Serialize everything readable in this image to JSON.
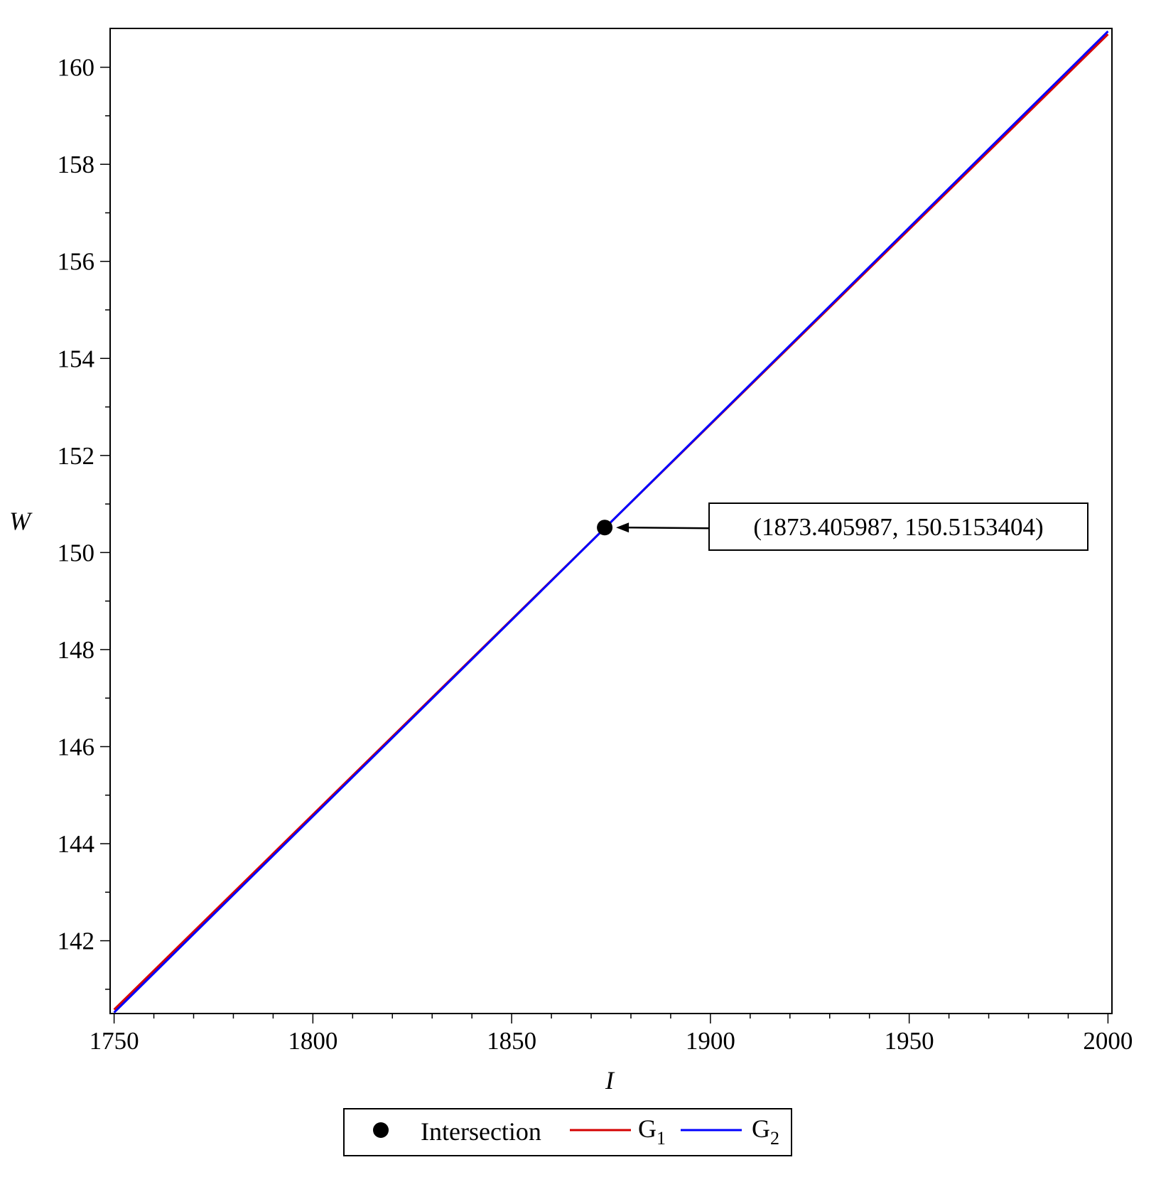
{
  "chart_data": {
    "type": "line",
    "xlabel": "I",
    "ylabel": "W",
    "xlim": [
      1749,
      2001
    ],
    "ylim": [
      140.5,
      160.8
    ],
    "x_ticks": [
      1750,
      1800,
      1850,
      1900,
      1950,
      2000
    ],
    "x_tick_labels": [
      "1750",
      "1800",
      "1850",
      "1900",
      "1950",
      "2000"
    ],
    "x_minor_step": 10,
    "y_ticks": [
      142,
      144,
      146,
      148,
      150,
      152,
      154,
      156,
      158,
      160
    ],
    "y_tick_labels": [
      "142",
      "144",
      "146",
      "148",
      "150",
      "152",
      "154",
      "156",
      "158",
      "160"
    ],
    "y_minor_step": 1,
    "grid": false,
    "legend_position": "bottom-center",
    "series": [
      {
        "name": "G",
        "sub": "1",
        "color": "#d40000",
        "x": [
          1750,
          2000
        ],
        "y": [
          140.58,
          160.68
        ]
      },
      {
        "name": "G",
        "sub": "2",
        "color": "#0000ff",
        "x": [
          1750,
          2000
        ],
        "y": [
          140.52,
          160.74
        ]
      }
    ],
    "points": [
      {
        "name": "Intersection",
        "color": "#000000",
        "x": 1873.405987,
        "y": 150.5153404
      }
    ],
    "annotation": {
      "text": "(1873.405987, 150.5153404)",
      "target_x": 1873.405987,
      "target_y": 150.5153404
    }
  }
}
